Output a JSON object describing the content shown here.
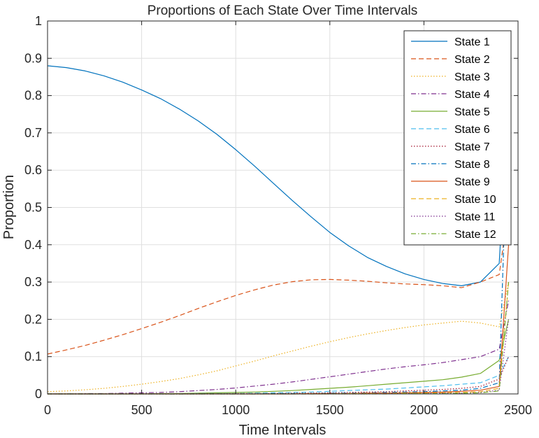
{
  "chart_data": {
    "type": "line",
    "title": "Proportions of Each State Over Time Intervals",
    "xlabel": "Time Intervals",
    "ylabel": "Proportion",
    "xlim": [
      0,
      2500
    ],
    "ylim": [
      0,
      1
    ],
    "xticks": [
      "0",
      "500",
      "1000",
      "1500",
      "2000",
      "2500"
    ],
    "yticks": [
      "0",
      "0.1",
      "0.2",
      "0.3",
      "0.4",
      "0.5",
      "0.6",
      "0.7",
      "0.8",
      "0.9",
      "1"
    ],
    "grid": true,
    "legend_position": "top-right",
    "x": [
      0,
      100,
      200,
      300,
      400,
      500,
      600,
      700,
      800,
      900,
      1000,
      1100,
      1200,
      1300,
      1400,
      1500,
      1600,
      1700,
      1800,
      1900,
      2000,
      2100,
      2200,
      2300,
      2400,
      2450
    ],
    "series": [
      {
        "name": "State 1",
        "color": "#0072BD",
        "dash": "solid",
        "values": [
          0.88,
          0.875,
          0.866,
          0.853,
          0.836,
          0.815,
          0.792,
          0.764,
          0.732,
          0.696,
          0.655,
          0.611,
          0.565,
          0.519,
          0.475,
          0.433,
          0.397,
          0.366,
          0.342,
          0.322,
          0.307,
          0.296,
          0.29,
          0.3,
          0.35,
          0.8
        ]
      },
      {
        "name": "State 2",
        "color": "#D95319",
        "dash": "dashed",
        "values": [
          0.107,
          0.118,
          0.13,
          0.144,
          0.159,
          0.175,
          0.192,
          0.21,
          0.229,
          0.247,
          0.264,
          0.279,
          0.292,
          0.301,
          0.306,
          0.307,
          0.305,
          0.302,
          0.298,
          0.295,
          0.293,
          0.29,
          0.285,
          0.3,
          0.32,
          0.5
        ]
      },
      {
        "name": "State 3",
        "color": "#EDB120",
        "dash": "dotted",
        "values": [
          0.006,
          0.008,
          0.011,
          0.015,
          0.02,
          0.026,
          0.033,
          0.041,
          0.051,
          0.062,
          0.075,
          0.088,
          0.102,
          0.115,
          0.128,
          0.14,
          0.151,
          0.161,
          0.17,
          0.178,
          0.185,
          0.19,
          0.195,
          0.19,
          0.18,
          0.3
        ]
      },
      {
        "name": "State 4",
        "color": "#7E2F8E",
        "dash": "dashdot",
        "values": [
          0.0,
          0.0,
          0.001,
          0.001,
          0.002,
          0.003,
          0.004,
          0.006,
          0.009,
          0.012,
          0.016,
          0.021,
          0.026,
          0.032,
          0.039,
          0.046,
          0.053,
          0.06,
          0.067,
          0.073,
          0.078,
          0.084,
          0.092,
          0.1,
          0.12,
          0.25
        ]
      },
      {
        "name": "State 5",
        "color": "#77AC30",
        "dash": "solid",
        "values": [
          0.0,
          0.0,
          0.0,
          0.0,
          0.0,
          0.0,
          0.001,
          0.001,
          0.002,
          0.003,
          0.004,
          0.005,
          0.007,
          0.009,
          0.012,
          0.015,
          0.018,
          0.022,
          0.026,
          0.03,
          0.034,
          0.038,
          0.045,
          0.055,
          0.09,
          0.2
        ]
      },
      {
        "name": "State 6",
        "color": "#4DBEEE",
        "dash": "dashed",
        "values": [
          0.0,
          0.0,
          0.0,
          0.0,
          0.0,
          0.0,
          0.0,
          0.0,
          0.001,
          0.001,
          0.001,
          0.002,
          0.003,
          0.004,
          0.005,
          0.007,
          0.009,
          0.011,
          0.013,
          0.016,
          0.019,
          0.022,
          0.026,
          0.03,
          0.05,
          0.1
        ]
      },
      {
        "name": "State 7",
        "color": "#A2142F",
        "dash": "dotted",
        "values": [
          0.0,
          0.0,
          0.0,
          0.0,
          0.0,
          0.0,
          0.0,
          0.0,
          0.0,
          0.0,
          0.001,
          0.001,
          0.001,
          0.002,
          0.002,
          0.003,
          0.004,
          0.005,
          0.006,
          0.008,
          0.01,
          0.012,
          0.015,
          0.02,
          0.04,
          0.1
        ]
      },
      {
        "name": "State 8",
        "color": "#0072BD",
        "dash": "dashdot",
        "values": [
          0.0,
          0.0,
          0.0,
          0.0,
          0.0,
          0.0,
          0.0,
          0.0,
          0.0,
          0.0,
          0.0,
          0.0,
          0.001,
          0.001,
          0.001,
          0.002,
          0.002,
          0.003,
          0.004,
          0.005,
          0.006,
          0.008,
          0.01,
          0.015,
          0.03,
          0.8
        ]
      },
      {
        "name": "State 9",
        "color": "#D95319",
        "dash": "solid",
        "values": [
          0.0,
          0.0,
          0.0,
          0.0,
          0.0,
          0.0,
          0.0,
          0.0,
          0.0,
          0.0,
          0.0,
          0.0,
          0.0,
          0.0,
          0.001,
          0.001,
          0.001,
          0.002,
          0.002,
          0.003,
          0.004,
          0.005,
          0.007,
          0.01,
          0.02,
          0.4
        ]
      },
      {
        "name": "State 10",
        "color": "#EDB120",
        "dash": "dashed",
        "values": [
          0.0,
          0.0,
          0.0,
          0.0,
          0.0,
          0.0,
          0.0,
          0.0,
          0.0,
          0.0,
          0.0,
          0.0,
          0.0,
          0.0,
          0.0,
          0.0,
          0.001,
          0.001,
          0.001,
          0.002,
          0.002,
          0.003,
          0.004,
          0.006,
          0.015,
          0.3
        ]
      },
      {
        "name": "State 11",
        "color": "#7E2F8E",
        "dash": "dotted",
        "values": [
          0.0,
          0.0,
          0.0,
          0.0,
          0.0,
          0.0,
          0.0,
          0.0,
          0.0,
          0.0,
          0.0,
          0.0,
          0.0,
          0.0,
          0.0,
          0.0,
          0.0,
          0.0,
          0.001,
          0.001,
          0.001,
          0.002,
          0.002,
          0.004,
          0.01,
          0.2
        ]
      },
      {
        "name": "State 12",
        "color": "#77AC30",
        "dash": "dashdot",
        "values": [
          0.0,
          0.0,
          0.0,
          0.0,
          0.0,
          0.0,
          0.0,
          0.0,
          0.0,
          0.0,
          0.0,
          0.0,
          0.0,
          0.0,
          0.0,
          0.0,
          0.0,
          0.0,
          0.0,
          0.001,
          0.001,
          0.001,
          0.002,
          0.003,
          0.008,
          0.3
        ]
      }
    ]
  }
}
